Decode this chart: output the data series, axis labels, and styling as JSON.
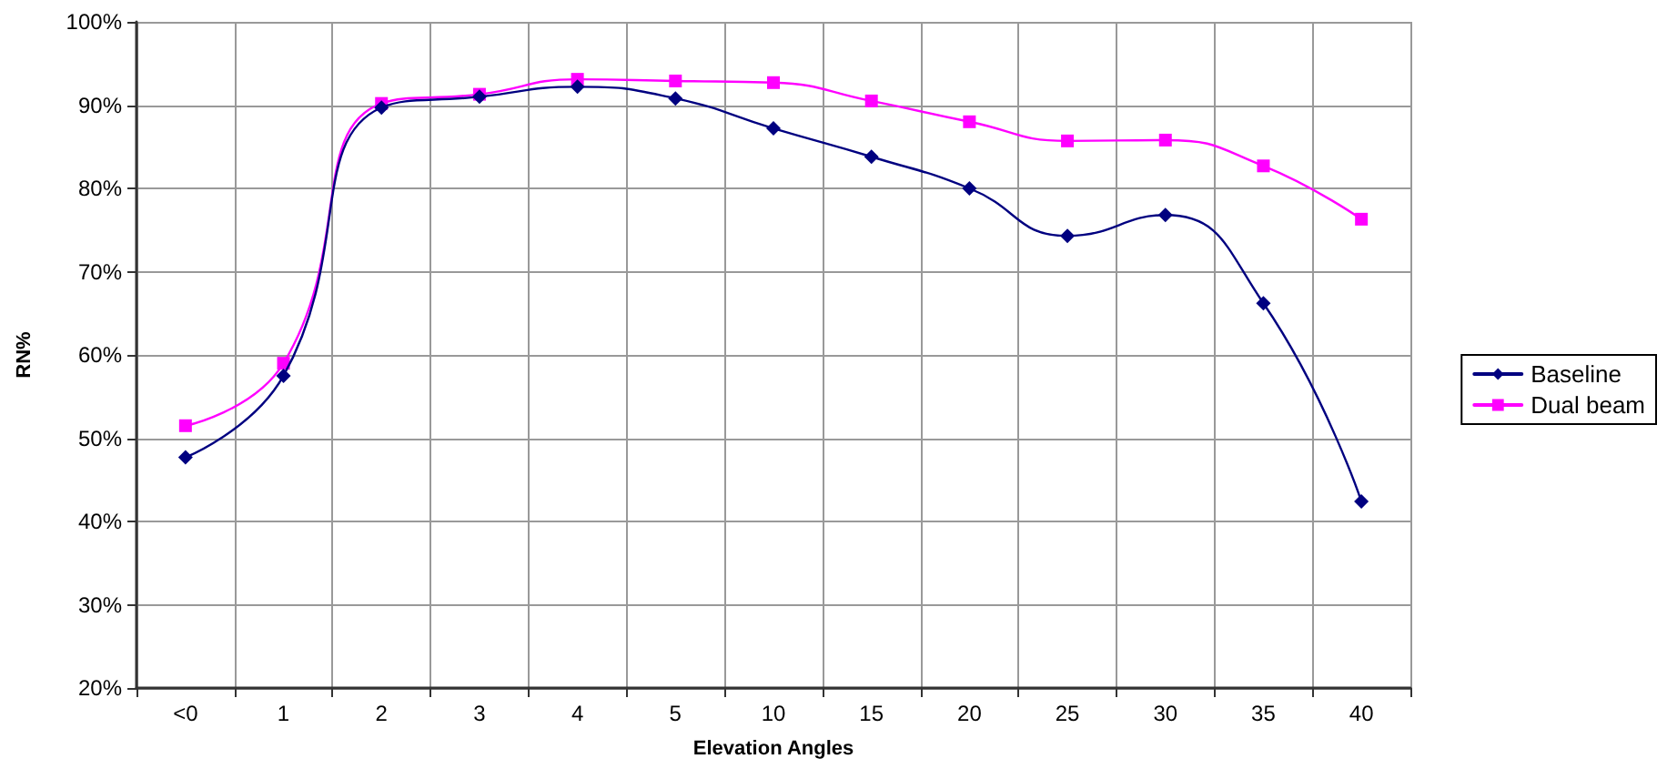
{
  "chart_data": {
    "type": "line",
    "xlabel": "Elevation Angles",
    "ylabel": "RN%",
    "categories": [
      "<0",
      "1",
      "2",
      "3",
      "4",
      "5",
      "10",
      "15",
      "20",
      "25",
      "30",
      "35",
      "40"
    ],
    "series": [
      {
        "name": "Baseline",
        "color": "#000080",
        "marker": "diamond",
        "values": [
          47.7,
          57.5,
          89.7,
          91.0,
          92.2,
          90.8,
          87.2,
          83.8,
          80.0,
          74.3,
          76.8,
          66.2,
          42.4
        ]
      },
      {
        "name": "Dual beam",
        "color": "#ff00ff",
        "marker": "square",
        "values": [
          51.5,
          59.0,
          90.2,
          91.3,
          93.1,
          92.9,
          92.7,
          90.5,
          88.0,
          85.7,
          85.8,
          82.7,
          76.3
        ]
      }
    ],
    "ylim": [
      20,
      100
    ],
    "yticks": [
      {
        "value": 20,
        "label": "20%"
      },
      {
        "value": 30,
        "label": "30%"
      },
      {
        "value": 40,
        "label": "40%"
      },
      {
        "value": 50,
        "label": "50%"
      },
      {
        "value": 60,
        "label": "60%"
      },
      {
        "value": 70,
        "label": "70%"
      },
      {
        "value": 80,
        "label": "80%"
      },
      {
        "value": 90,
        "label": "90%"
      },
      {
        "value": 100,
        "label": "100%"
      }
    ],
    "grid": true,
    "legend": "right",
    "line_style": "solid"
  }
}
